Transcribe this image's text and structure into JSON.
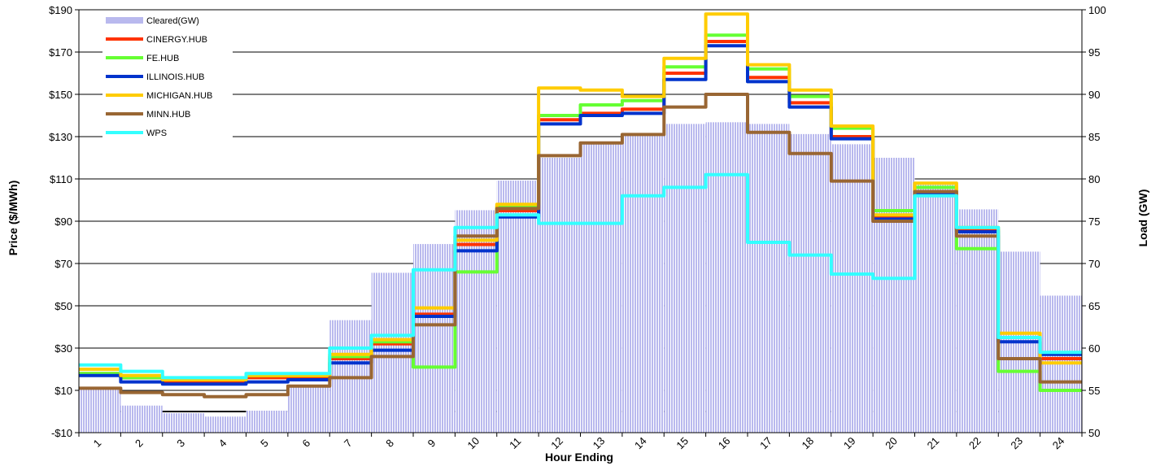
{
  "chart_data": {
    "type": "line",
    "title": "",
    "xlabel": "Hour Ending",
    "ylabel": "Price ($/MWh)",
    "y2label": "Load (GW)",
    "categories": [
      "1",
      "2",
      "3",
      "4",
      "5",
      "6",
      "7",
      "8",
      "9",
      "10",
      "11",
      "12",
      "13",
      "14",
      "15",
      "16",
      "17",
      "18",
      "19",
      "20",
      "21",
      "22",
      "23",
      "24"
    ],
    "ylim": [
      -10,
      190
    ],
    "y_ticks": [
      "-$10",
      "$10",
      "$30",
      "$50",
      "$70",
      "$90",
      "$110",
      "$130",
      "$150",
      "$170",
      "$190"
    ],
    "y2lim": [
      50,
      100
    ],
    "y2_ticks": [
      "50",
      "55",
      "60",
      "65",
      "70",
      "75",
      "80",
      "85",
      "90",
      "95",
      "100"
    ],
    "grid": "horizontal",
    "legend_position": "top-left",
    "bars": {
      "name": "Cleared(GW)",
      "color": "#b9b9ee",
      "values": [
        55.3,
        53.2,
        52.3,
        51.9,
        52.6,
        55.4,
        63.3,
        68.9,
        72.3,
        76.3,
        79.8,
        82.5,
        84.1,
        85.3,
        86.5,
        86.7,
        86.5,
        85.3,
        84.1,
        82.5,
        79.3,
        76.4,
        71.4,
        66.2
      ]
    },
    "series": [
      {
        "name": "CINERGY.HUB",
        "color": "#ff3300",
        "values": [
          18,
          16,
          14,
          14,
          16,
          16,
          25,
          32,
          46,
          79,
          95,
          138,
          141,
          143,
          160,
          175,
          158,
          146,
          130,
          92,
          104,
          86,
          35,
          25
        ]
      },
      {
        "name": "FE.HUB",
        "color": "#66ff33",
        "values": [
          18,
          16,
          15,
          15,
          17,
          17,
          26,
          33,
          21,
          66,
          97,
          140,
          145,
          147,
          163,
          178,
          162,
          149,
          134,
          95,
          106,
          77,
          19,
          10
        ]
      },
      {
        "name": "ILLINOIS.HUB",
        "color": "#0033cc",
        "values": [
          17,
          14,
          13,
          13,
          14,
          15,
          23,
          29,
          45,
          76,
          92,
          136,
          140,
          141,
          157,
          173,
          156,
          144,
          129,
          91,
          103,
          85,
          33,
          27
        ]
      },
      {
        "name": "MICHIGAN.HUB",
        "color": "#ffcc00",
        "values": [
          20,
          17,
          15,
          15,
          17,
          17,
          27,
          34,
          49,
          81,
          98,
          153,
          152,
          149,
          167,
          188,
          164,
          152,
          135,
          93,
          108,
          87,
          37,
          23
        ]
      },
      {
        "name": "MINN.HUB",
        "color": "#996633",
        "values": [
          11,
          9,
          8,
          7,
          8,
          12,
          16,
          26,
          41,
          83,
          96,
          121,
          127,
          131,
          144,
          150,
          132,
          122,
          109,
          90,
          104,
          83,
          25,
          14
        ]
      },
      {
        "name": "WPS",
        "color": "#33ffff",
        "values": [
          22,
          19,
          16,
          16,
          18,
          18,
          30,
          36,
          67,
          87,
          93,
          89,
          89,
          102,
          106,
          112,
          80,
          74,
          65,
          63,
          102,
          87,
          35,
          28
        ]
      }
    ]
  }
}
